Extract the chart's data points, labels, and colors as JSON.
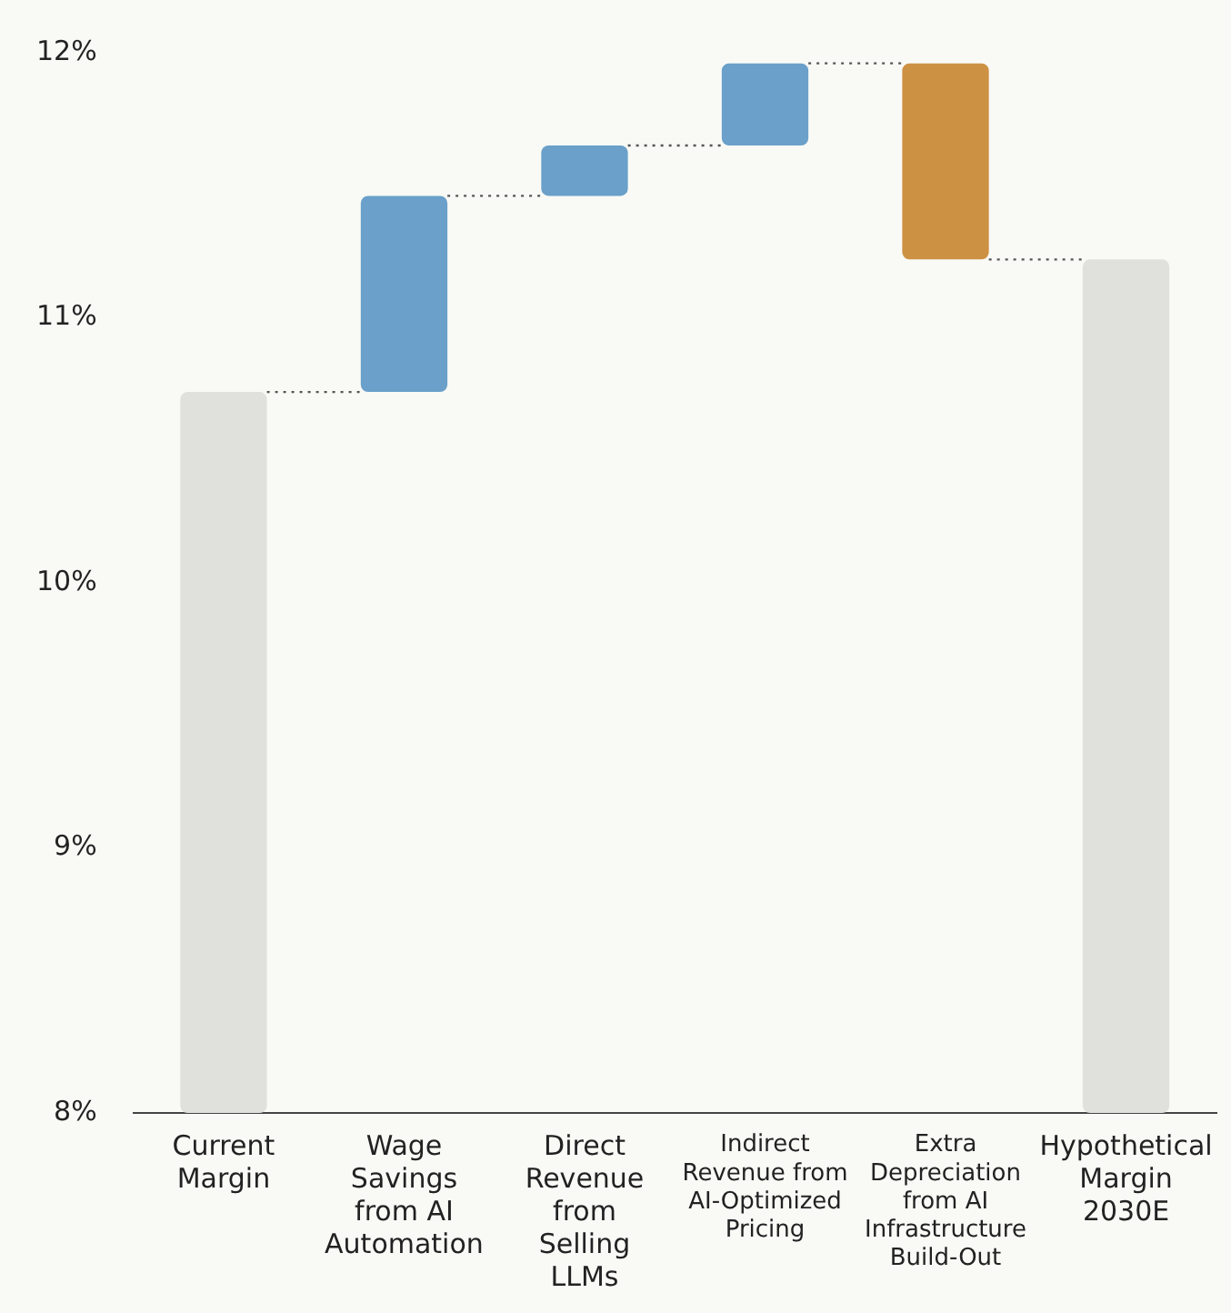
{
  "chart_data": {
    "type": "bar",
    "categories": [
      "Current\nMargin",
      "Wage\nSavings\nfrom AI\nAutomation",
      "Direct\nRevenue\nfrom\nSelling\nLLMs",
      "Indirect\nRevenue from\nAI-Optimized\nPricing",
      "Extra\nDepreciation\nfrom AI\nInfrastructure\nBuild-Out",
      "Hypothetical\nMargin\n2030E"
    ],
    "base": [
      8,
      10.72,
      11.46,
      11.65,
      11.96,
      8
    ],
    "values": [
      2.72,
      0.74,
      0.19,
      0.31,
      -0.74,
      3.22
    ],
    "colors": [
      "#e0e0dc",
      "#6aa0c9",
      "#6aa0c9",
      "#6aa0c9",
      "#cd9144",
      "#e0e0dc"
    ],
    "ylim": [
      8,
      12
    ],
    "yticks": [
      {
        "value": 8,
        "label": "8%"
      },
      {
        "value": 9,
        "label": "9%"
      },
      {
        "value": 10,
        "label": "10%"
      },
      {
        "value": 11,
        "label": "11%"
      },
      {
        "value": 12,
        "label": "12%"
      }
    ],
    "grid": false,
    "legend": false
  }
}
